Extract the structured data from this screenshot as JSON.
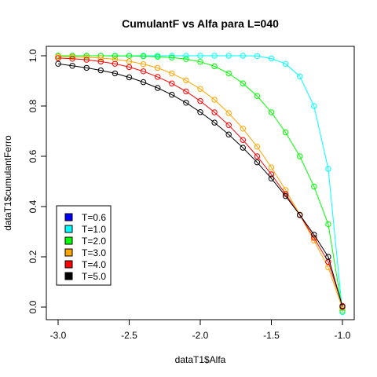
{
  "chart_data": {
    "type": "line",
    "title": "CumulantF vs Alfa para L=040",
    "xlabel": "dataT1$Alfa",
    "ylabel": "dataT1$cumulantFerro",
    "xlim": [
      -3.0,
      -1.0
    ],
    "ylim": [
      0.0,
      1.0
    ],
    "x_ticks": [
      "-3.0",
      "-2.5",
      "-2.0",
      "-1.5",
      "-1.0"
    ],
    "y_ticks": [
      "0.0",
      "0.2",
      "0.4",
      "0.6",
      "0.8",
      "1.0"
    ],
    "grid": false,
    "legend_position": "bottom-left",
    "x": [
      -3.0,
      -2.9,
      -2.8,
      -2.7,
      -2.6,
      -2.5,
      -2.4,
      -2.3,
      -2.2,
      -2.1,
      -2.0,
      -1.9,
      -1.8,
      -1.7,
      -1.6,
      -1.5,
      -1.4,
      -1.3,
      -1.2,
      -1.1,
      -1.0
    ],
    "series": [
      {
        "name": "T=0.6",
        "color": "#0000ff",
        "values": [
          1.0,
          1.0,
          1.0,
          1.0,
          1.0,
          1.0,
          1.0,
          1.0,
          1.0,
          1.0,
          1.0,
          1.0,
          1.0,
          1.0,
          1.0,
          1.0,
          1.0,
          1.0,
          1.0,
          1.0,
          1.0
        ],
        "visible": false
      },
      {
        "name": "T=1.0",
        "color": "#00ffff",
        "values": [
          1.0,
          1.0,
          1.0,
          1.0,
          1.0,
          1.0,
          1.0,
          1.0,
          1.0,
          1.0,
          1.0,
          1.0,
          1.0,
          1.0,
          0.999,
          0.989,
          0.968,
          0.918,
          0.8,
          0.55,
          -0.02
        ]
      },
      {
        "name": "T=2.0",
        "color": "#00ff00",
        "values": [
          1.0,
          1.0,
          1.0,
          1.0,
          0.999,
          0.999,
          0.998,
          0.996,
          0.993,
          0.987,
          0.976,
          0.958,
          0.93,
          0.89,
          0.84,
          0.775,
          0.695,
          0.6,
          0.48,
          0.33,
          -0.015
        ]
      },
      {
        "name": "T=3.0",
        "color": "#ffa500",
        "values": [
          0.997,
          0.996,
          0.994,
          0.991,
          0.986,
          0.978,
          0.967,
          0.952,
          0.93,
          0.902,
          0.868,
          0.825,
          0.772,
          0.71,
          0.638,
          0.556,
          0.466,
          0.368,
          0.265,
          0.158,
          -0.005
        ]
      },
      {
        "name": "T=4.0",
        "color": "#ff0000",
        "values": [
          0.991,
          0.988,
          0.984,
          0.977,
          0.968,
          0.955,
          0.938,
          0.916,
          0.89,
          0.858,
          0.82,
          0.775,
          0.724,
          0.665,
          0.6,
          0.528,
          0.45,
          0.366,
          0.276,
          0.18,
          0.005
        ]
      },
      {
        "name": "T=5.0",
        "color": "#000000",
        "values": [
          0.968,
          0.96,
          0.952,
          0.942,
          0.93,
          0.914,
          0.895,
          0.872,
          0.845,
          0.813,
          0.776,
          0.734,
          0.687,
          0.634,
          0.576,
          0.512,
          0.442,
          0.367,
          0.288,
          0.2,
          0.002
        ]
      }
    ]
  }
}
